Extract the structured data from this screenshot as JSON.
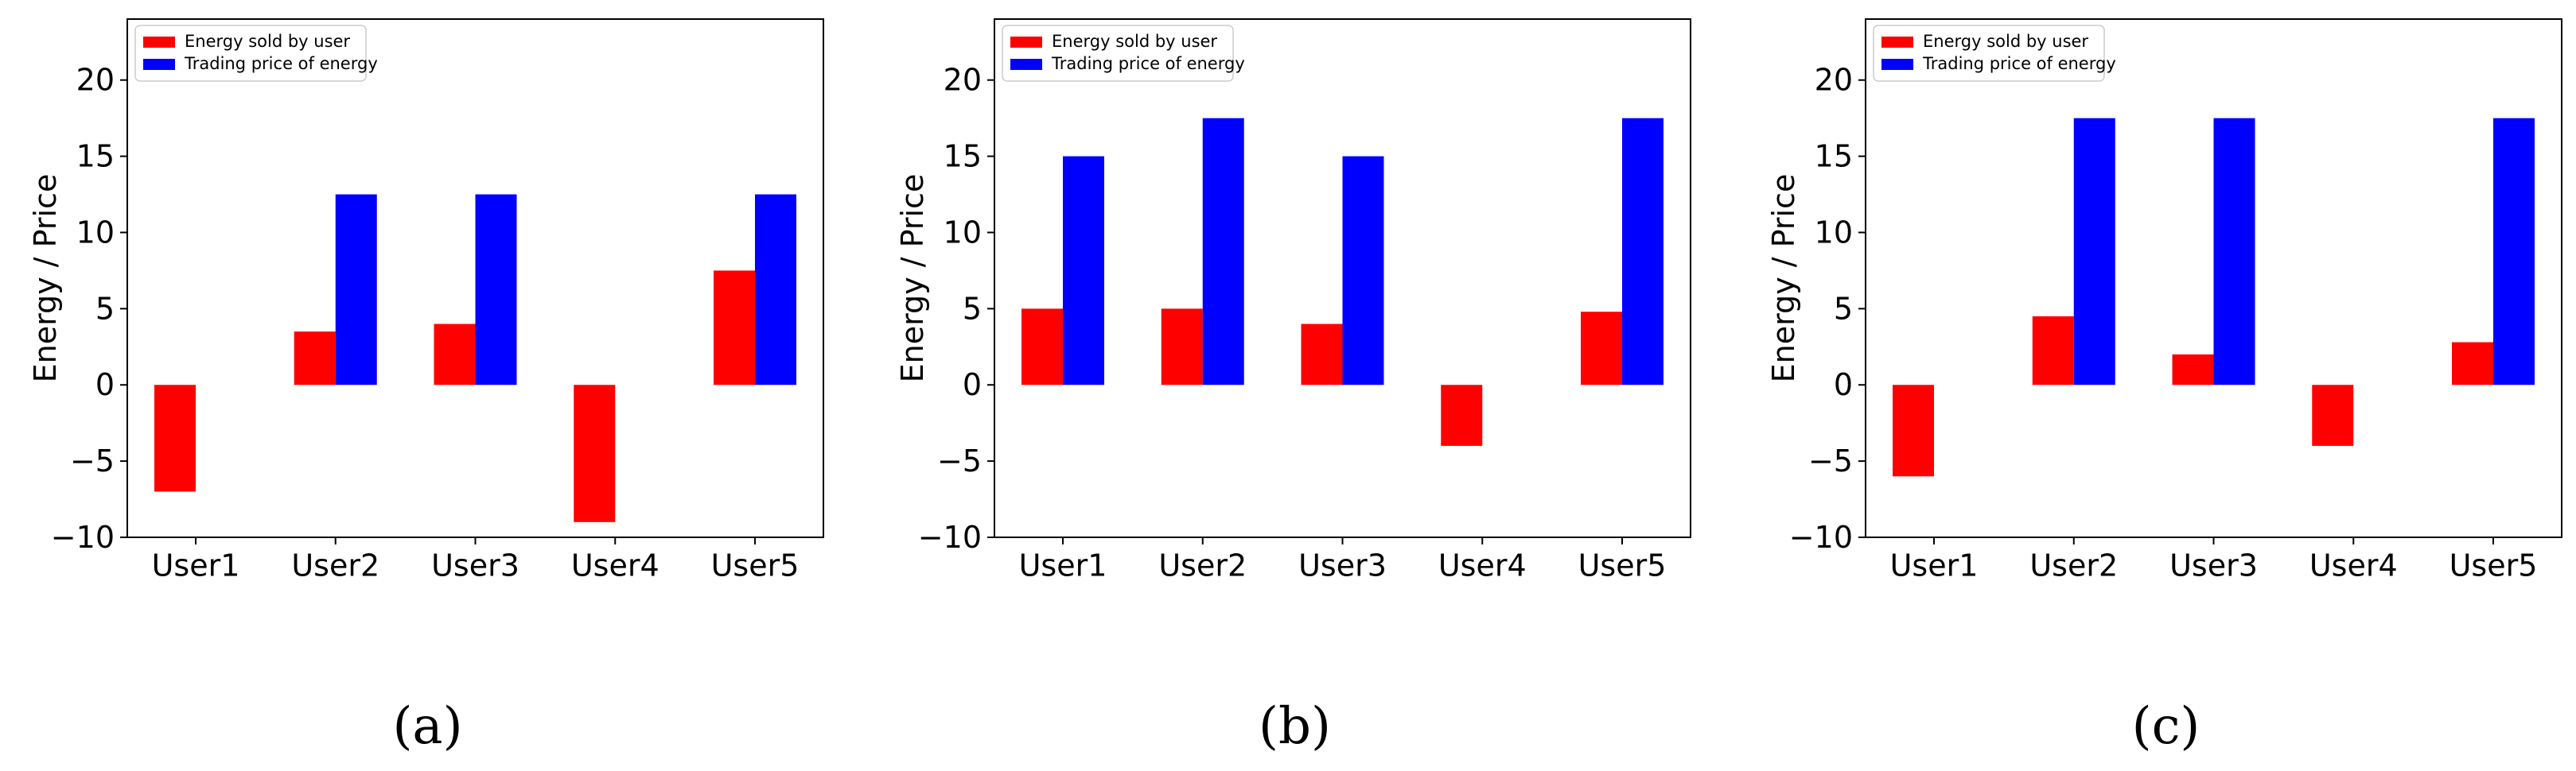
{
  "figure": {
    "panel_labels": [
      "(a)",
      "(b)",
      "(c)"
    ]
  },
  "colors": {
    "energy": "#ff0000",
    "price": "#0000ff",
    "axes": "#000000",
    "legend_border": "#cccccc"
  },
  "chart_data": [
    {
      "type": "bar",
      "title": "",
      "panel": "(a)",
      "categories": [
        "User1",
        "User2",
        "User3",
        "User4",
        "User5"
      ],
      "series": [
        {
          "name": "Energy sold by user",
          "color": "#ff0000",
          "values": [
            -7,
            3.5,
            4,
            -9,
            7.5
          ]
        },
        {
          "name": "Trading price of energy",
          "color": "#0000ff",
          "values": [
            0,
            12.5,
            12.5,
            0,
            12.5
          ]
        }
      ],
      "xlabel": "",
      "ylabel": "Energy / Price",
      "ylim": [
        -10,
        24
      ],
      "yticks": [
        -10,
        -5,
        0,
        5,
        10,
        15,
        20
      ],
      "ytick_labels": [
        "−10",
        "−5",
        "0",
        "5",
        "10",
        "15",
        "20"
      ],
      "legend": "top-left",
      "grid": false
    },
    {
      "type": "bar",
      "title": "",
      "panel": "(b)",
      "categories": [
        "User1",
        "User2",
        "User3",
        "User4",
        "User5"
      ],
      "series": [
        {
          "name": "Energy sold by user",
          "color": "#ff0000",
          "values": [
            5,
            5,
            4,
            -4,
            4.8
          ]
        },
        {
          "name": "Trading price of energy",
          "color": "#0000ff",
          "values": [
            15,
            17.5,
            15,
            0,
            17.5
          ]
        }
      ],
      "xlabel": "",
      "ylabel": "Energy / Price",
      "ylim": [
        -10,
        24
      ],
      "yticks": [
        -10,
        -5,
        0,
        5,
        10,
        15,
        20
      ],
      "ytick_labels": [
        "−10",
        "−5",
        "0",
        "5",
        "10",
        "15",
        "20"
      ],
      "legend": "top-left",
      "grid": false
    },
    {
      "type": "bar",
      "title": "",
      "panel": "(c)",
      "categories": [
        "User1",
        "User2",
        "User3",
        "User4",
        "User5"
      ],
      "series": [
        {
          "name": "Energy sold by user",
          "color": "#ff0000",
          "values": [
            -6,
            4.5,
            2,
            -4,
            2.8
          ]
        },
        {
          "name": "Trading price of energy",
          "color": "#0000ff",
          "values": [
            0,
            17.5,
            17.5,
            0,
            17.5
          ]
        }
      ],
      "xlabel": "",
      "ylabel": "Energy / Price",
      "ylim": [
        -10,
        24
      ],
      "yticks": [
        -10,
        -5,
        0,
        5,
        10,
        15,
        20
      ],
      "ytick_labels": [
        "−10",
        "−5",
        "0",
        "5",
        "10",
        "15",
        "20"
      ],
      "legend": "top-left",
      "grid": false
    }
  ]
}
